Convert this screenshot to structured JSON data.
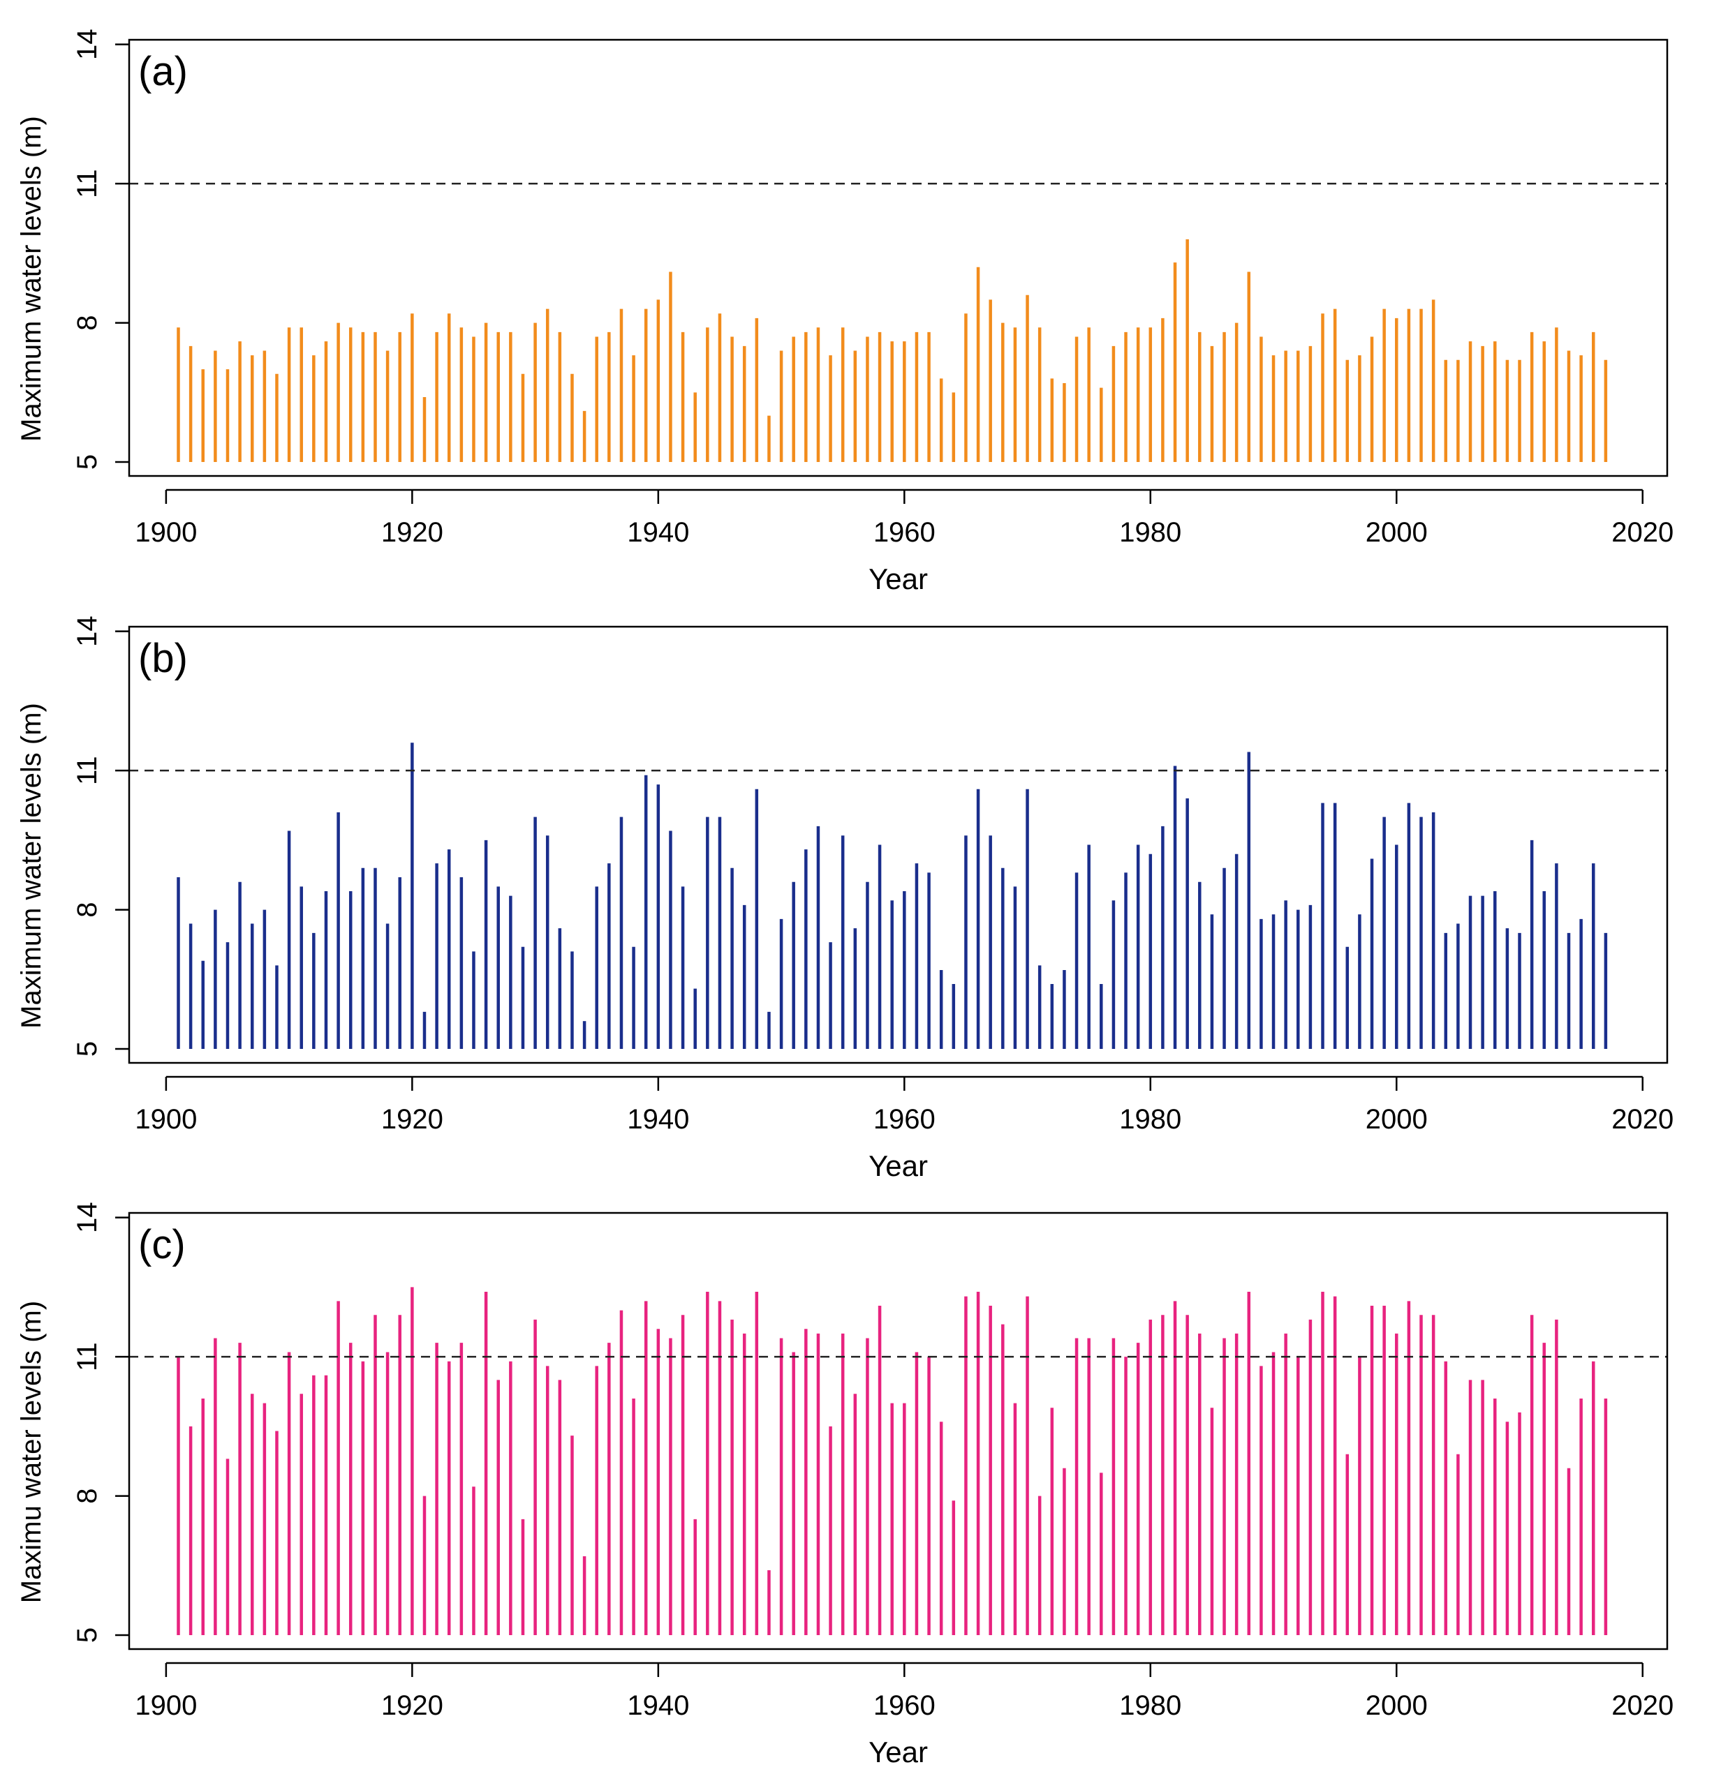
{
  "chart_data": [
    {
      "type": "bar",
      "panel_label": "(a)",
      "title": "",
      "xlabel": "Year",
      "ylabel": "Maximum water levels (m)",
      "xlim": [
        1897,
        2022
      ],
      "ylim": [
        4.7,
        14.1
      ],
      "baseline": 5,
      "xticks": [
        1900,
        1920,
        1940,
        1960,
        1980,
        2000,
        2020
      ],
      "yticks": [
        5,
        8,
        11,
        14
      ],
      "threshold": 11,
      "color": "#f28c1c",
      "years_start": 1901,
      "years_end": 2017,
      "values": [
        7.9,
        7.5,
        7.0,
        7.4,
        7.0,
        7.6,
        7.3,
        7.4,
        6.9,
        7.9,
        7.9,
        7.3,
        7.6,
        8.0,
        7.9,
        7.8,
        7.8,
        7.4,
        7.8,
        8.2,
        6.4,
        7.8,
        8.2,
        7.9,
        7.7,
        8.0,
        7.8,
        7.8,
        6.9,
        8.0,
        8.3,
        7.8,
        6.9,
        6.1,
        7.7,
        7.8,
        8.3,
        7.3,
        8.3,
        8.5,
        9.1,
        7.8,
        6.5,
        7.9,
        8.2,
        7.7,
        7.5,
        8.1,
        6.0,
        7.4,
        7.7,
        7.8,
        7.9,
        7.3,
        7.9,
        7.4,
        7.7,
        7.8,
        7.6,
        7.6,
        7.8,
        7.8,
        6.8,
        6.5,
        8.2,
        9.2,
        8.5,
        8.0,
        7.9,
        8.6,
        7.9,
        6.8,
        6.7,
        7.7,
        7.9,
        6.6,
        7.5,
        7.8,
        7.9,
        7.9,
        8.1,
        9.3,
        9.8,
        7.8,
        7.5,
        7.8,
        8.0,
        9.1,
        7.7,
        7.3,
        7.4,
        7.4,
        7.5,
        8.2,
        8.3,
        7.2,
        7.3,
        7.7,
        8.3,
        8.1,
        8.3,
        8.3,
        8.5,
        7.2,
        7.2,
        7.6,
        7.5,
        7.6,
        7.2,
        7.2,
        7.8,
        7.6,
        7.9,
        7.4,
        7.3,
        7.8,
        7.2
      ]
    },
    {
      "type": "bar",
      "panel_label": "(b)",
      "title": "",
      "xlabel": "Year",
      "ylabel": "Maximum water levels (m)",
      "xlim": [
        1897,
        2022
      ],
      "ylim": [
        4.7,
        14.1
      ],
      "baseline": 5,
      "xticks": [
        1900,
        1920,
        1940,
        1960,
        1980,
        2000,
        2020
      ],
      "yticks": [
        5,
        8,
        11,
        14
      ],
      "threshold": 11,
      "color": "#1a2e8c",
      "years_start": 1901,
      "years_end": 2017,
      "values": [
        8.7,
        7.7,
        6.9,
        8.0,
        7.3,
        8.6,
        7.7,
        8.0,
        6.8,
        9.7,
        8.5,
        7.5,
        8.4,
        10.1,
        8.4,
        8.9,
        8.9,
        7.7,
        8.7,
        11.6,
        5.8,
        9.0,
        9.3,
        8.7,
        7.1,
        9.5,
        8.5,
        8.3,
        7.2,
        10.0,
        9.6,
        7.6,
        7.1,
        5.6,
        8.5,
        9.0,
        10.0,
        7.2,
        10.9,
        10.7,
        9.7,
        8.5,
        6.3,
        10.0,
        10.0,
        8.9,
        8.1,
        10.6,
        5.8,
        7.8,
        8.6,
        9.3,
        9.8,
        7.3,
        9.6,
        7.6,
        8.6,
        9.4,
        8.2,
        8.4,
        9.0,
        8.8,
        6.7,
        6.4,
        9.6,
        10.6,
        9.6,
        8.9,
        8.5,
        10.6,
        6.8,
        6.4,
        6.7,
        8.8,
        9.4,
        6.4,
        8.2,
        8.8,
        9.4,
        9.2,
        9.8,
        11.1,
        10.4,
        8.6,
        7.9,
        8.9,
        9.2,
        11.4,
        7.8,
        7.9,
        8.2,
        8.0,
        8.1,
        10.3,
        10.3,
        7.2,
        7.9,
        9.1,
        10.0,
        9.4,
        10.3,
        10.0,
        10.1,
        7.5,
        7.7,
        8.3,
        8.3,
        8.4,
        7.6,
        7.5,
        9.5,
        8.4,
        9.0,
        7.5,
        7.8,
        9.0,
        7.5
      ]
    },
    {
      "type": "bar",
      "panel_label": "(c)",
      "title": "",
      "xlabel": "Year",
      "ylabel": "Maximu water levels (m)",
      "xlim": [
        1897,
        2022
      ],
      "ylim": [
        4.7,
        14.1
      ],
      "baseline": 5,
      "xticks": [
        1900,
        1920,
        1940,
        1960,
        1980,
        2000,
        2020
      ],
      "yticks": [
        5,
        8,
        11,
        14
      ],
      "threshold": 11,
      "color": "#e8237f",
      "years_start": 1901,
      "years_end": 2017,
      "values": [
        11.0,
        9.5,
        10.1,
        11.4,
        8.8,
        11.3,
        10.2,
        10.0,
        9.4,
        11.1,
        10.2,
        10.6,
        10.6,
        12.2,
        11.3,
        10.9,
        11.9,
        11.1,
        11.9,
        12.5,
        8.0,
        11.3,
        10.9,
        11.3,
        8.2,
        12.4,
        10.5,
        10.9,
        7.5,
        11.8,
        10.8,
        10.5,
        9.3,
        6.7,
        10.8,
        11.3,
        12.0,
        10.1,
        12.2,
        11.6,
        11.4,
        11.9,
        7.5,
        12.4,
        12.2,
        11.8,
        11.5,
        12.4,
        6.4,
        11.4,
        11.1,
        11.6,
        11.5,
        9.5,
        11.5,
        10.2,
        11.4,
        12.1,
        10.0,
        10.0,
        11.1,
        11.0,
        9.6,
        7.9,
        12.3,
        12.4,
        12.1,
        11.7,
        10.0,
        12.3,
        8.0,
        9.9,
        8.6,
        11.4,
        11.4,
        8.5,
        11.4,
        11.0,
        11.3,
        11.8,
        11.9,
        12.2,
        11.9,
        11.5,
        9.9,
        11.4,
        11.5,
        12.4,
        10.8,
        11.1,
        11.5,
        11.0,
        11.8,
        12.4,
        12.3,
        8.9,
        11.0,
        12.1,
        12.1,
        11.5,
        12.2,
        11.9,
        11.9,
        10.9,
        8.9,
        10.5,
        10.5,
        10.1,
        9.6,
        9.8,
        11.9,
        11.3,
        11.8,
        8.6,
        10.1,
        10.9,
        10.1
      ]
    }
  ]
}
